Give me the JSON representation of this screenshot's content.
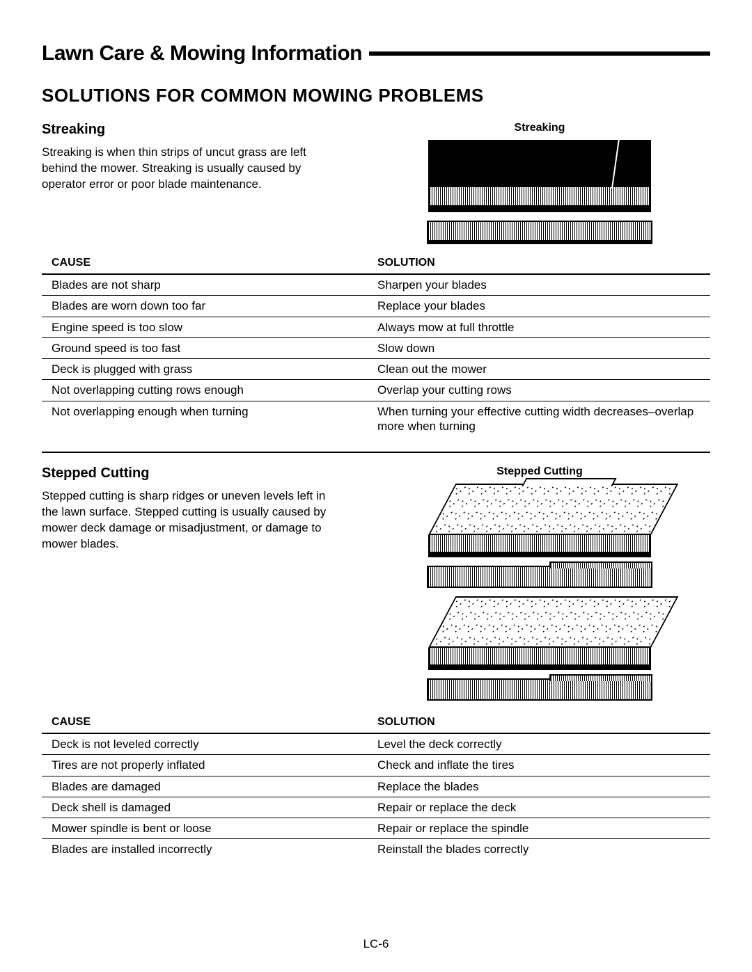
{
  "header": {
    "title": "Lawn Care & Mowing Information"
  },
  "section_title": "SOLUTIONS FOR COMMON MOWING PROBLEMS",
  "page_number": "LC-6",
  "columns": {
    "cause": "CAUSE",
    "solution": "SOLUTION"
  },
  "streaking": {
    "heading": "Streaking",
    "fig_label": "Streaking",
    "description": "Streaking is when thin strips of uncut grass are left behind the mower.  Streaking is usually caused by operator error or poor blade maintenance.",
    "rows": [
      {
        "cause": "Blades are not sharp",
        "solution": "Sharpen your blades"
      },
      {
        "cause": "Blades are worn down too far",
        "solution": "Replace your blades"
      },
      {
        "cause": "Engine speed is too slow",
        "solution": "Always mow at full throttle"
      },
      {
        "cause": "Ground speed is too fast",
        "solution": "Slow down"
      },
      {
        "cause": "Deck is plugged with grass",
        "solution": "Clean out the mower"
      },
      {
        "cause": "Not overlapping cutting rows enough",
        "solution": "Overlap your cutting rows"
      },
      {
        "cause": "Not overlapping enough when turning",
        "solution": "When turning your effective cutting width decreases–overlap more when turning"
      }
    ]
  },
  "stepped": {
    "heading": "Stepped Cutting",
    "fig_label": "Stepped Cutting",
    "description": "Stepped cutting is sharp ridges or uneven levels left in the lawn surface.  Stepped cutting is usually caused by mower deck damage or misadjustment, or damage to mower blades.",
    "rows": [
      {
        "cause": "Deck is not leveled correctly",
        "solution": "Level the deck correctly"
      },
      {
        "cause": "Tires are not properly inflated",
        "solution": "Check and inflate the tires"
      },
      {
        "cause": "Blades are damaged",
        "solution": "Replace the blades"
      },
      {
        "cause": "Deck shell is damaged",
        "solution": "Repair or replace the deck"
      },
      {
        "cause": "Mower spindle is bent or loose",
        "solution": "Repair or replace the spindle"
      },
      {
        "cause": "Blades are installed incorrectly",
        "solution": "Reinstall the blades correctly"
      }
    ]
  }
}
